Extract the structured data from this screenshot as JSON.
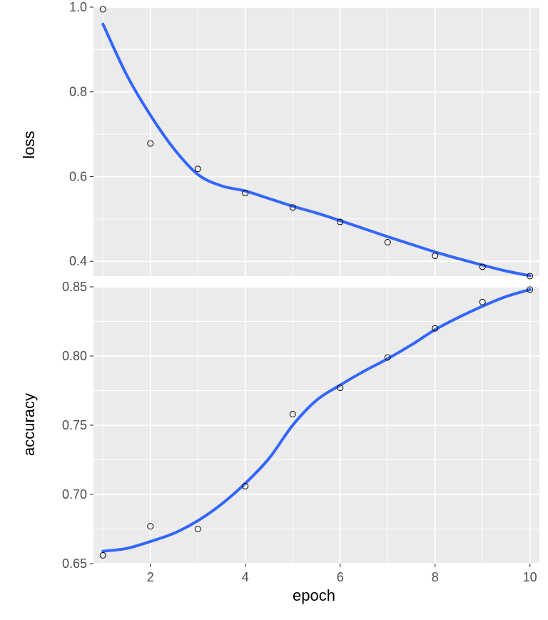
{
  "chart_data": [
    {
      "type": "scatter",
      "panel": "loss",
      "ylabel": "loss",
      "ylim": [
        0.365,
        1.0
      ],
      "yticks": [
        0.4,
        0.6,
        0.8,
        1.0
      ],
      "ytick_labels": [
        "0.4",
        "0.6",
        "0.8",
        "1.0"
      ],
      "grid": true,
      "series": [
        {
          "x": [
            1,
            2,
            3,
            4,
            5,
            6,
            7,
            8,
            9,
            10
          ],
          "y": [
            0.995,
            0.678,
            0.618,
            0.561,
            0.527,
            0.493,
            0.445,
            0.413,
            0.387,
            0.365
          ]
        }
      ],
      "smooth": {
        "x": [
          1,
          1.5,
          2,
          2.5,
          3,
          3.5,
          4,
          4.5,
          5,
          5.5,
          6,
          6.5,
          7,
          7.5,
          8,
          8.5,
          9,
          9.5,
          10
        ],
        "y": [
          0.96,
          0.84,
          0.745,
          0.665,
          0.605,
          0.578,
          0.566,
          0.548,
          0.53,
          0.514,
          0.496,
          0.477,
          0.458,
          0.44,
          0.422,
          0.406,
          0.391,
          0.377,
          0.366
        ]
      }
    },
    {
      "type": "scatter",
      "panel": "accuracy",
      "ylabel": "accuracy",
      "ylim": [
        0.65,
        0.85
      ],
      "yticks": [
        0.65,
        0.7,
        0.75,
        0.8,
        0.85
      ],
      "ytick_labels": [
        "0.65",
        "0.70",
        "0.75",
        "0.80",
        "0.85"
      ],
      "grid": true,
      "series": [
        {
          "x": [
            1,
            2,
            3,
            4,
            5,
            6,
            7,
            8,
            9,
            10
          ],
          "y": [
            0.656,
            0.677,
            0.675,
            0.706,
            0.758,
            0.777,
            0.799,
            0.82,
            0.839,
            0.848
          ]
        }
      ],
      "smooth": {
        "x": [
          1,
          1.5,
          2,
          2.5,
          3,
          3.5,
          4,
          4.5,
          5,
          5.5,
          6,
          6.5,
          7,
          7.5,
          8,
          8.5,
          9,
          9.5,
          10
        ],
        "y": [
          0.659,
          0.661,
          0.666,
          0.672,
          0.681,
          0.693,
          0.708,
          0.726,
          0.75,
          0.768,
          0.779,
          0.789,
          0.798,
          0.808,
          0.819,
          0.828,
          0.836,
          0.843,
          0.848
        ]
      }
    }
  ],
  "shared_x": {
    "xlabel": "epoch",
    "xlim": [
      0.8,
      10.2
    ],
    "xticks": [
      2,
      4,
      6,
      8,
      10
    ],
    "xtick_labels": [
      "2",
      "4",
      "6",
      "8",
      "10"
    ]
  },
  "colors": {
    "panel_background": "#ebebeb",
    "grid_major": "#ffffff",
    "smooth_line": "#3366ff",
    "point_stroke": "#000000"
  }
}
